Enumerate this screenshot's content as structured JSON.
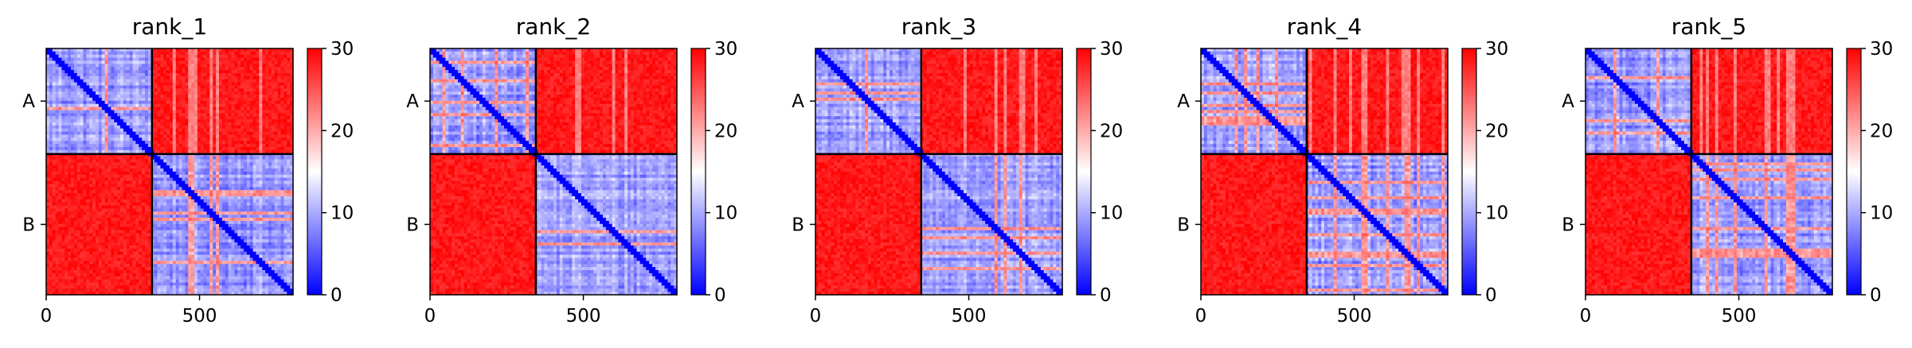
{
  "chart_data": {
    "type": "heatmap",
    "colormap": "bwr",
    "colormap_colors": [
      "#0000ff",
      "#ffffff",
      "#ff0000"
    ],
    "color_range": [
      0,
      30
    ],
    "colorbar_ticks": [
      "0",
      "10",
      "20",
      "30"
    ],
    "x_range": [
      0,
      805
    ],
    "segment_boundary": 345,
    "x_ticks": [
      {
        "value": 0,
        "label": "0"
      },
      {
        "value": 500,
        "label": "500"
      }
    ],
    "y_ticks": [
      {
        "value": 172,
        "label": "A"
      },
      {
        "value": 575,
        "label": "B"
      }
    ],
    "panels": [
      {
        "title": "rank_1"
      },
      {
        "title": "rank_2"
      },
      {
        "title": "rank_3"
      },
      {
        "title": "rank_4"
      },
      {
        "title": "rank_5"
      }
    ]
  }
}
